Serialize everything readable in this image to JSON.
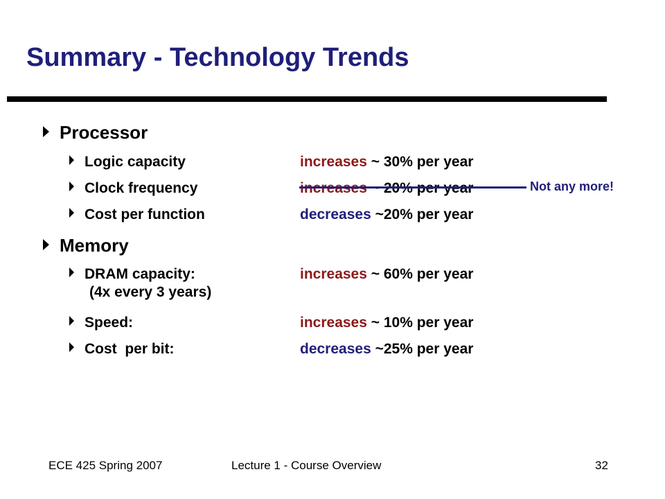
{
  "slide": {
    "title": "Summary - Technology Trends",
    "processor": {
      "heading": "Processor",
      "items": [
        {
          "label": "Logic capacity",
          "verb": "increases",
          "rest": " ~ 30% per year"
        },
        {
          "label": "Clock frequency",
          "verb": "increases",
          "rest": " ~ 20% per year"
        },
        {
          "label": "Cost per function",
          "verb": "decreases",
          "rest": " ~20% per year"
        }
      ]
    },
    "memory": {
      "heading": "Memory",
      "items": [
        {
          "label": "DRAM capacity:",
          "sub": "(4x every 3 years)",
          "verb": "increases",
          "rest": " ~ 60% per year"
        },
        {
          "label": "Speed:",
          "verb": "increases",
          "rest": " ~ 10% per year"
        },
        {
          "label": "Cost  per bit:",
          "verb": "decreases",
          "rest": " ~25% per year"
        }
      ]
    },
    "annotation": "Not any more!",
    "colors": {
      "title": "#1f1f7a",
      "increase": "#8b1a1a",
      "decrease": "#1f1f7a"
    }
  },
  "footer": {
    "left": "ECE 425 Spring 2007",
    "center": "Lecture 1 - Course Overview",
    "page": "32"
  }
}
